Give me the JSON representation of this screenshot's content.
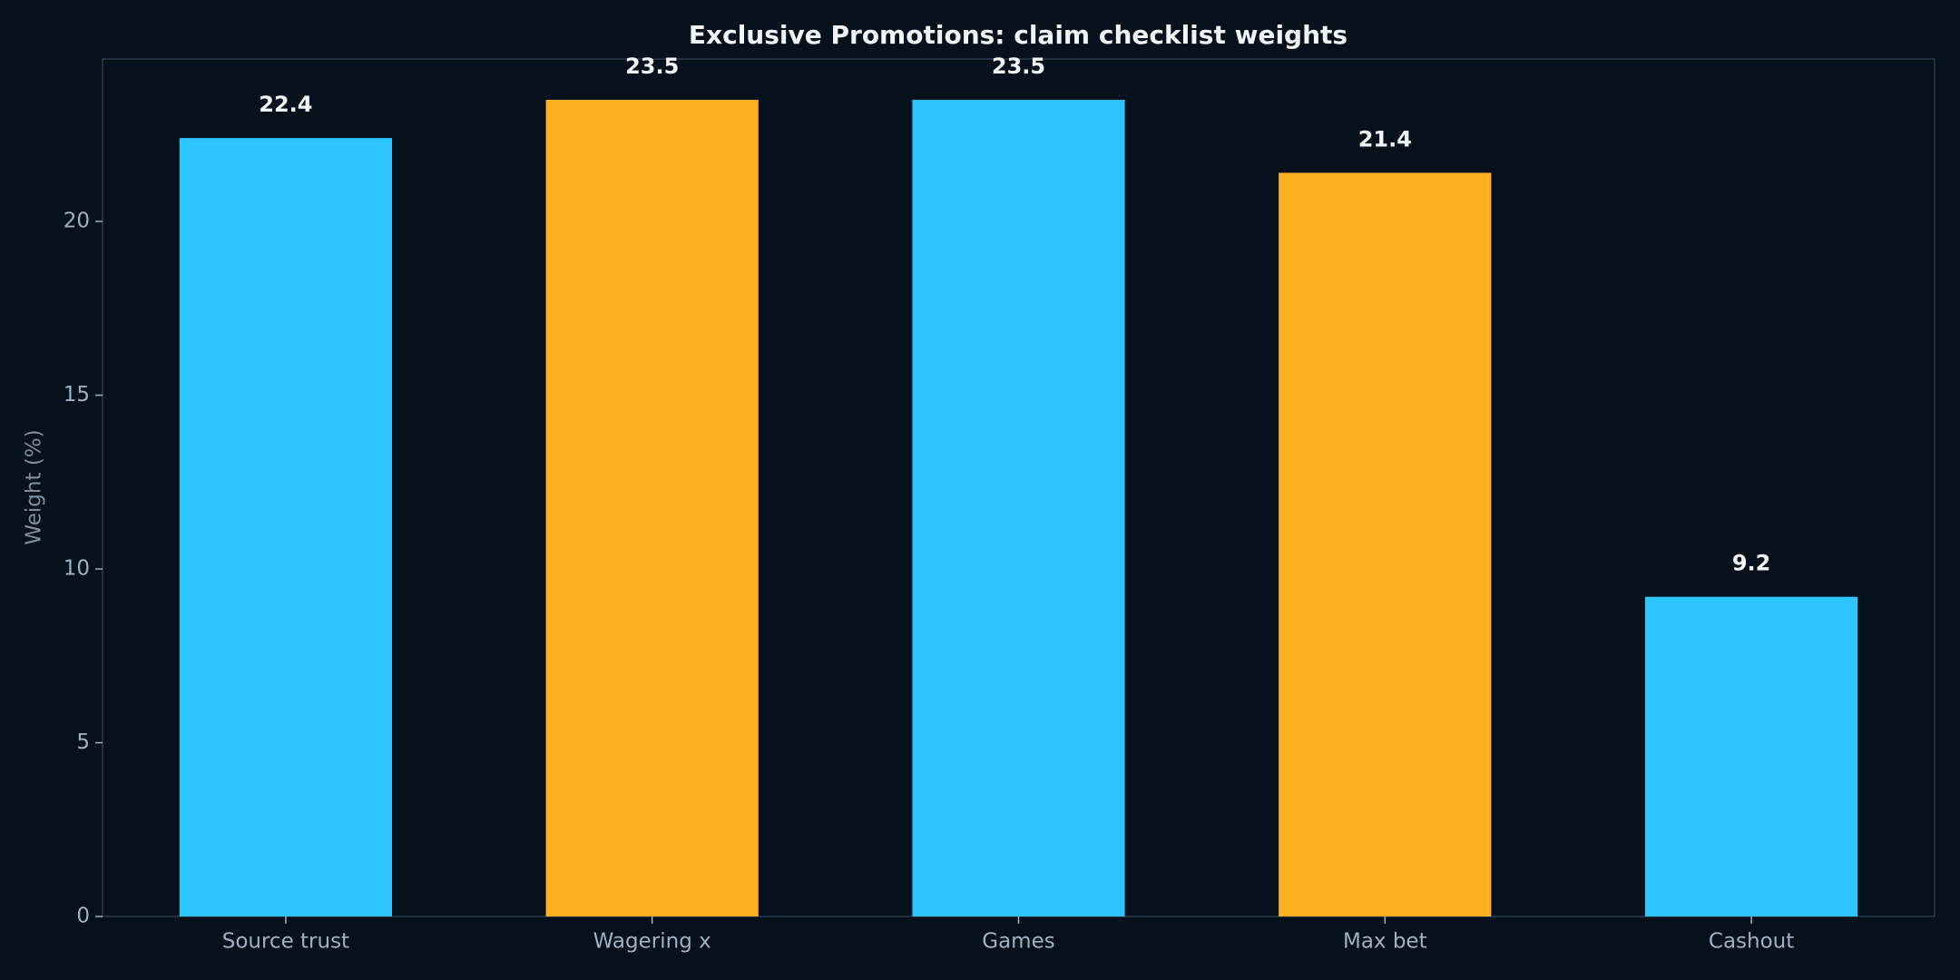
{
  "chart_data": {
    "type": "bar",
    "title": "Exclusive Promotions: claim checklist weights",
    "y_label": "Weight (%)",
    "categories": [
      "Source trust",
      "Wagering x",
      "Games",
      "Max bet",
      "Cashout"
    ],
    "values": [
      22.4,
      23.5,
      23.5,
      21.4,
      9.2
    ],
    "colors": [
      "#2ec4ff",
      "#ffb020",
      "#2ec4ff",
      "#ffb020",
      "#2ec4ff"
    ],
    "ylim": [
      0,
      24.675
    ],
    "yticks": [
      0,
      5,
      10,
      15,
      20
    ],
    "grid": false
  }
}
